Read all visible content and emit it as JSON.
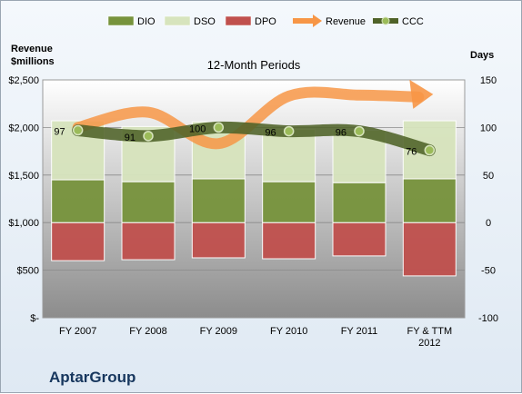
{
  "company": "AptarGroup",
  "chart_data": {
    "type": "bar",
    "title": "12-Month Periods",
    "categories": [
      [
        "FY 2007"
      ],
      [
        "FY 2008"
      ],
      [
        "FY 2009"
      ],
      [
        "FY 2010"
      ],
      [
        "FY 2011"
      ],
      [
        "FY & TTM",
        "2012"
      ]
    ],
    "y_left": {
      "label": [
        "Revenue",
        "$millions"
      ],
      "range": [
        0,
        2500
      ],
      "ticks": [
        0,
        500,
        1000,
        1500,
        2000,
        2500
      ],
      "tick_labels": [
        "$-",
        "$500",
        "$1,000",
        "$1,500",
        "$2,000",
        "$2,500"
      ]
    },
    "y_right": {
      "label": "Days",
      "range": [
        -100,
        150
      ],
      "ticks": [
        -100,
        -50,
        0,
        50,
        100,
        150
      ],
      "tick_labels": [
        "-100",
        "-50",
        "0",
        "50",
        "100",
        "150"
      ]
    },
    "legend": {
      "placement": "top",
      "entries": [
        "DIO",
        "DSO",
        "DPO",
        "Revenue",
        "CCC"
      ]
    },
    "series": [
      {
        "name": "DIO",
        "type": "stacked-bar",
        "axis": "right",
        "color": "#77933c",
        "values": [
          45,
          43,
          46,
          43,
          42,
          46
        ]
      },
      {
        "name": "DSO",
        "type": "stacked-bar",
        "axis": "right",
        "color": "#d7e4bd",
        "values": [
          62,
          58,
          60,
          55,
          55,
          61
        ]
      },
      {
        "name": "DPO",
        "type": "stacked-bar-negative",
        "axis": "right",
        "color": "#c0504d",
        "values": [
          -40,
          -39,
          -37,
          -38,
          -35,
          -56
        ]
      },
      {
        "name": "Revenue",
        "type": "line-arrow",
        "axis": "left",
        "color": "#f79646",
        "values": [
          2000,
          2160,
          1830,
          2330,
          2340,
          2330
        ]
      },
      {
        "name": "CCC",
        "type": "line",
        "axis": "right",
        "color": "#4f6228",
        "values": [
          97,
          91,
          100,
          96,
          96,
          76
        ],
        "data_labels": [
          "97",
          "91",
          "100",
          "96",
          "96",
          "76"
        ]
      }
    ],
    "grid": true
  }
}
